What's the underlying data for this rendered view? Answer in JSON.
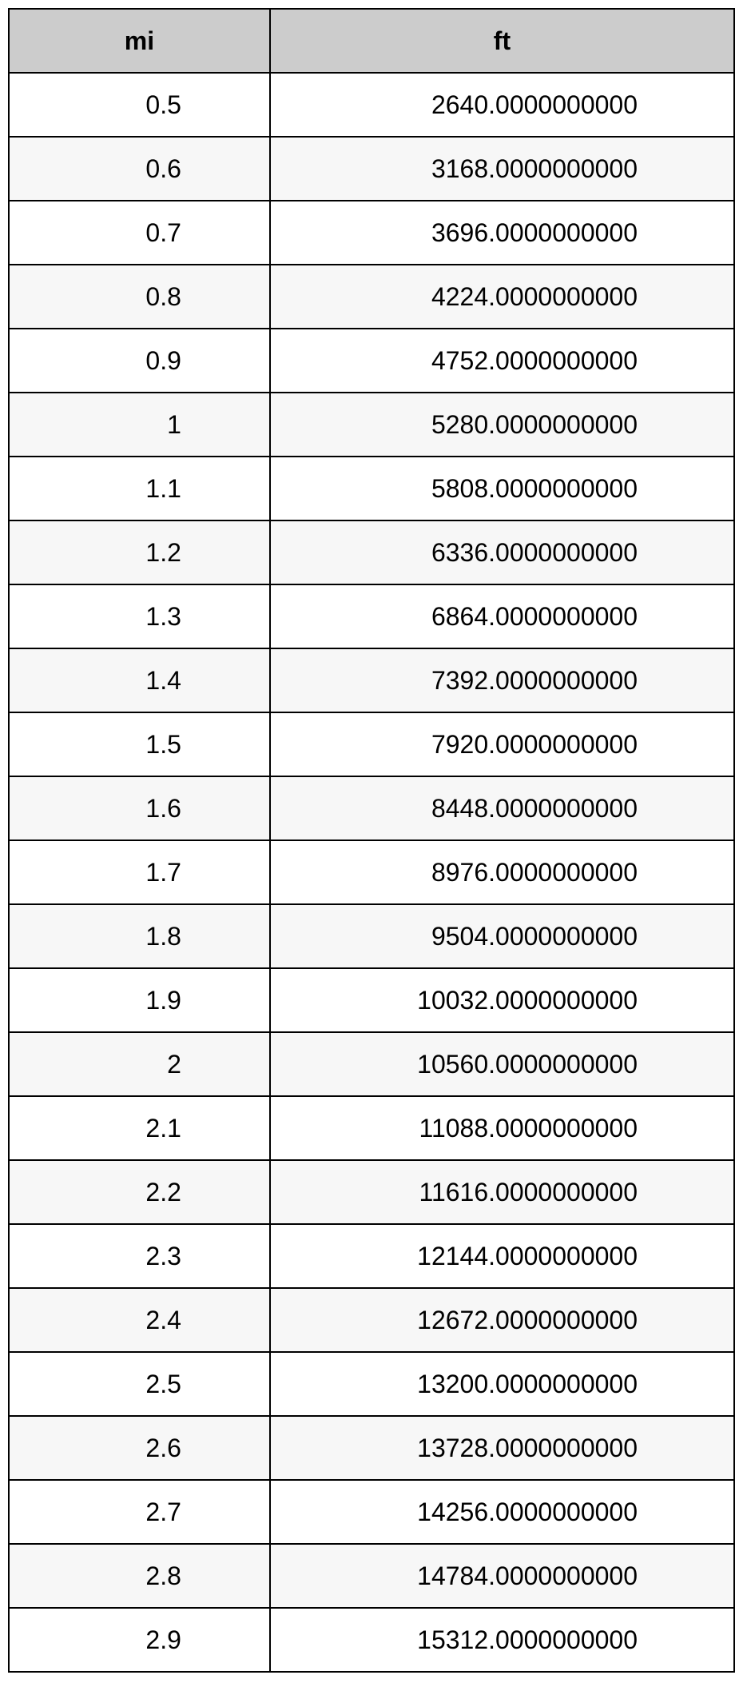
{
  "table": {
    "type": "table",
    "header_bg": "#cccccc",
    "row_bg": "#ffffff",
    "row_alt_bg": "#f7f7f7",
    "border_color": "#000000",
    "font_family": "Arial, Helvetica, sans-serif",
    "header_fontsize": 32,
    "cell_fontsize": 32,
    "columns": [
      {
        "key": "mi",
        "label": "mi",
        "width_pct": 36,
        "align": "center"
      },
      {
        "key": "ft",
        "label": "ft",
        "width_pct": 64,
        "align": "center"
      }
    ],
    "rows": [
      {
        "mi": "0.5",
        "ft": "2640.0000000000"
      },
      {
        "mi": "0.6",
        "ft": "3168.0000000000"
      },
      {
        "mi": "0.7",
        "ft": "3696.0000000000"
      },
      {
        "mi": "0.8",
        "ft": "4224.0000000000"
      },
      {
        "mi": "0.9",
        "ft": "4752.0000000000"
      },
      {
        "mi": "1",
        "ft": "5280.0000000000"
      },
      {
        "mi": "1.1",
        "ft": "5808.0000000000"
      },
      {
        "mi": "1.2",
        "ft": "6336.0000000000"
      },
      {
        "mi": "1.3",
        "ft": "6864.0000000000"
      },
      {
        "mi": "1.4",
        "ft": "7392.0000000000"
      },
      {
        "mi": "1.5",
        "ft": "7920.0000000000"
      },
      {
        "mi": "1.6",
        "ft": "8448.0000000000"
      },
      {
        "mi": "1.7",
        "ft": "8976.0000000000"
      },
      {
        "mi": "1.8",
        "ft": "9504.0000000000"
      },
      {
        "mi": "1.9",
        "ft": "10032.0000000000"
      },
      {
        "mi": "2",
        "ft": "10560.0000000000"
      },
      {
        "mi": "2.1",
        "ft": "11088.0000000000"
      },
      {
        "mi": "2.2",
        "ft": "11616.0000000000"
      },
      {
        "mi": "2.3",
        "ft": "12144.0000000000"
      },
      {
        "mi": "2.4",
        "ft": "12672.0000000000"
      },
      {
        "mi": "2.5",
        "ft": "13200.0000000000"
      },
      {
        "mi": "2.6",
        "ft": "13728.0000000000"
      },
      {
        "mi": "2.7",
        "ft": "14256.0000000000"
      },
      {
        "mi": "2.8",
        "ft": "14784.0000000000"
      },
      {
        "mi": "2.9",
        "ft": "15312.0000000000"
      }
    ]
  }
}
